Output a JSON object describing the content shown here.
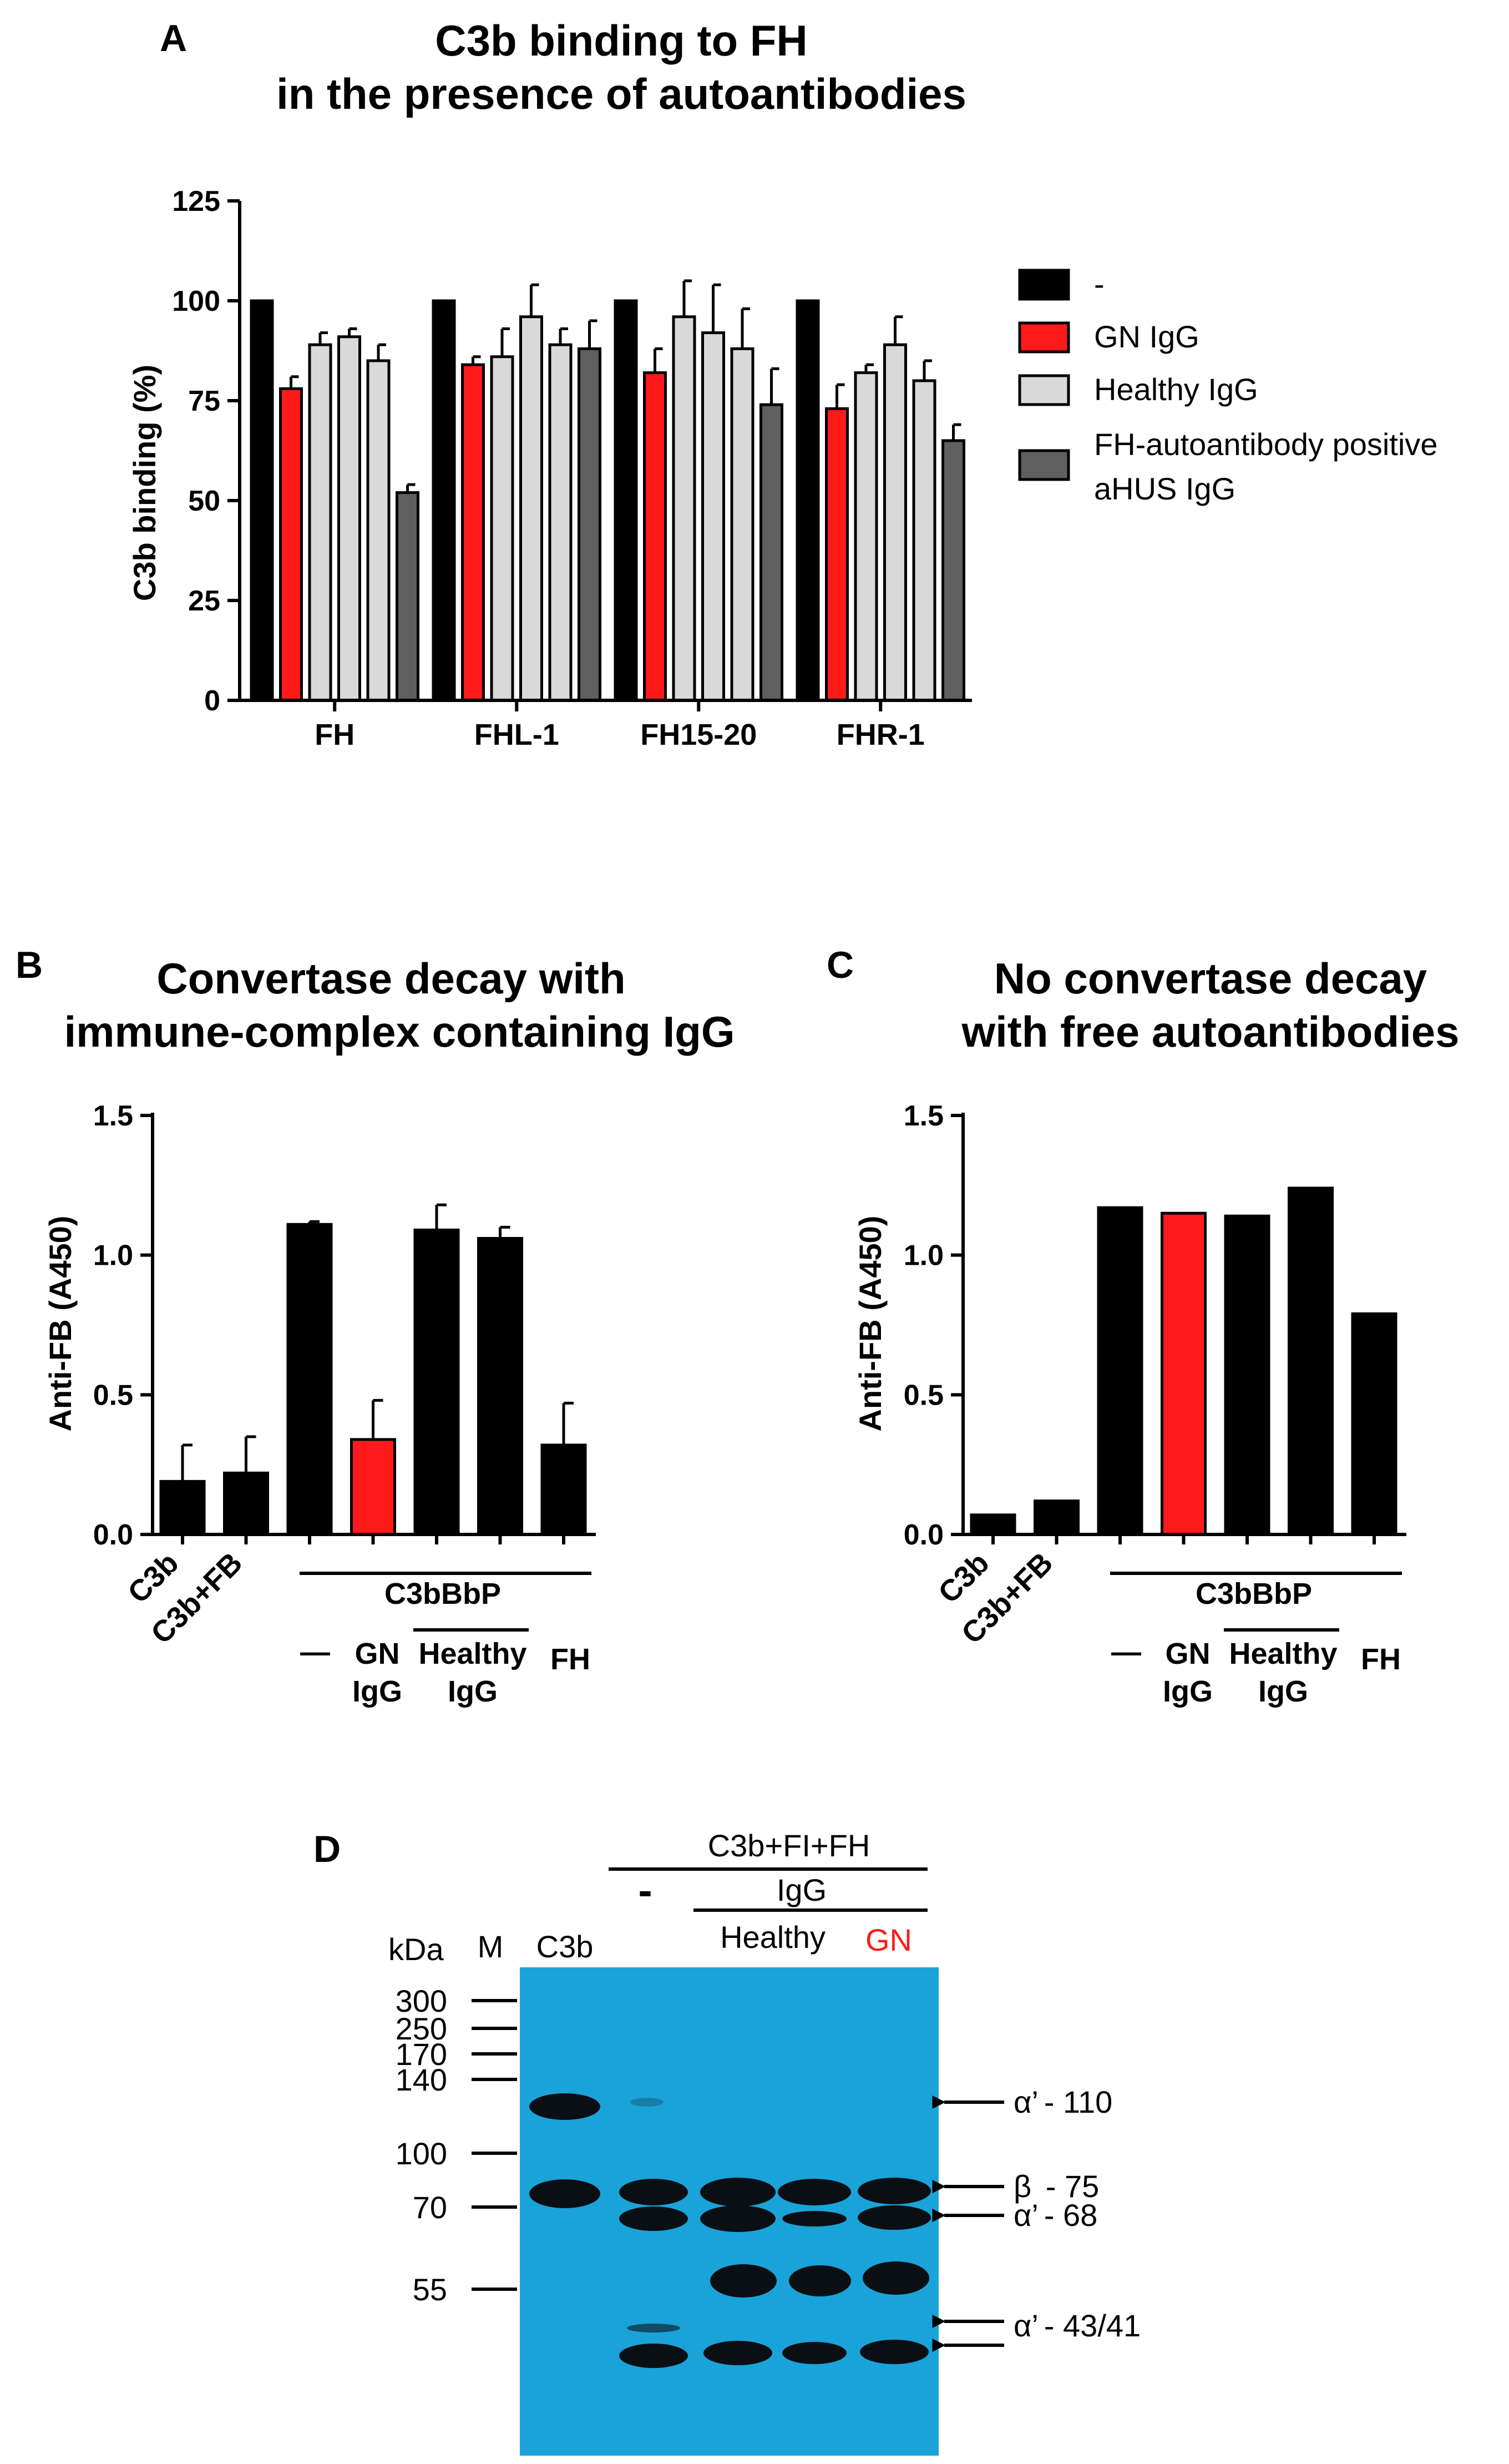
{
  "colors": {
    "black": "#000000",
    "red": "#ff1a1a",
    "light_gray": "#d9d9d9",
    "dark_gray": "#5f5f5f",
    "blot_bg": "#1aa3d9",
    "band": "#0a0f14"
  },
  "chart_data": [
    {
      "id": "A",
      "type": "bar",
      "panel_letter": "A",
      "title_lines": [
        "C3b binding to FH",
        "in the presence of autoantibodies"
      ],
      "ylabel": "C3b binding (%)",
      "ylim": [
        0,
        125
      ],
      "yticks": [
        "0",
        "25",
        "50",
        "75",
        "100",
        "125"
      ],
      "categories": [
        "FH",
        "FHL-1",
        "FH15-20",
        "FHR-1"
      ],
      "series": [
        {
          "name": "-",
          "color": "#000000",
          "values": [
            [
              100,
              0
            ],
            [
              100,
              0
            ],
            [
              100,
              0
            ],
            [
              100,
              0
            ]
          ]
        },
        {
          "name": "GN IgG",
          "color": "#ff1a1a",
          "values": [
            [
              78,
              3
            ],
            [
              84,
              2
            ],
            [
              82,
              6
            ],
            [
              73,
              6
            ]
          ]
        },
        {
          "name": "Healthy IgG",
          "color": "#d9d9d9",
          "values": [
            [
              89,
              3
            ],
            [
              86,
              7
            ],
            [
              96,
              9
            ],
            [
              82,
              2
            ]
          ]
        },
        {
          "name": "Healthy IgG",
          "color": "#d9d9d9",
          "values": [
            [
              91,
              2
            ],
            [
              96,
              8
            ],
            [
              92,
              12
            ],
            [
              89,
              7
            ]
          ]
        },
        {
          "name": "Healthy IgG",
          "color": "#d9d9d9",
          "values": [
            [
              85,
              4
            ],
            [
              89,
              4
            ],
            [
              88,
              10
            ],
            [
              80,
              5
            ]
          ]
        },
        {
          "name": "FH-autoantibody positive aHUS IgG",
          "color": "#5f5f5f",
          "values": [
            [
              52,
              2
            ],
            [
              88,
              7
            ],
            [
              74,
              9
            ],
            [
              65,
              4
            ]
          ]
        }
      ],
      "legend": [
        {
          "label": "-",
          "color": "#000000"
        },
        {
          "label": "GN IgG",
          "color": "#ff1a1a"
        },
        {
          "label": "Healthy IgG",
          "color": "#d9d9d9"
        },
        {
          "label_lines": [
            "FH-autoantibody positive",
            "aHUS IgG"
          ],
          "color": "#5f5f5f"
        }
      ]
    },
    {
      "id": "B",
      "type": "bar",
      "panel_letter": "B",
      "title_lines": [
        "Convertase decay with",
        "immune-complex containing IgG"
      ],
      "ylabel": "Anti-FB (A450)",
      "ylim": [
        0,
        1.5
      ],
      "yticks": [
        "0.0",
        "0.5",
        "1.0",
        "1.5"
      ],
      "categories": [
        "C3b",
        "C3b+FB",
        "C3bBbP -",
        "C3bBbP GN IgG",
        "C3bBbP Healthy IgG 1",
        "C3bBbP Healthy IgG 2",
        "C3bBbP FH"
      ],
      "values": [
        0.19,
        0.22,
        1.11,
        0.34,
        1.09,
        1.06,
        0.32
      ],
      "errors": [
        0.13,
        0.13,
        0.01,
        0.14,
        0.09,
        0.04,
        0.15
      ],
      "bar_colors": [
        "#000000",
        "#000000",
        "#000000",
        "#ff1a1a",
        "#000000",
        "#000000",
        "#000000"
      ],
      "labels": {
        "c3b": "C3b",
        "c3b_fb": "C3b+FB",
        "group": "C3bBbP",
        "dash": "—",
        "gn_lines": [
          "GN",
          "IgG"
        ],
        "healthy_lines": [
          "Healthy",
          "IgG"
        ],
        "fh": "FH"
      }
    },
    {
      "id": "C",
      "type": "bar",
      "panel_letter": "C",
      "title_lines": [
        "No convertase decay",
        "with free autoantibodies"
      ],
      "ylabel": "Anti-FB (A450)",
      "ylim": [
        0,
        1.5
      ],
      "yticks": [
        "0.0",
        "0.5",
        "1.0",
        "1.5"
      ],
      "categories": [
        "C3b",
        "C3b+FB",
        "C3bBbP -",
        "C3bBbP GN IgG",
        "C3bBbP Healthy IgG 1",
        "C3bBbP Healthy IgG 2",
        "C3bBbP FH"
      ],
      "values": [
        0.07,
        0.12,
        1.17,
        1.15,
        1.14,
        1.24,
        0.79
      ],
      "bar_colors": [
        "#000000",
        "#000000",
        "#000000",
        "#ff1a1a",
        "#000000",
        "#000000",
        "#000000"
      ],
      "labels": {
        "c3b": "C3b",
        "c3b_fb": "C3b+FB",
        "group": "C3bBbP",
        "dash": "—",
        "gn_lines": [
          "GN",
          "IgG"
        ],
        "healthy_lines": [
          "Healthy",
          "IgG"
        ],
        "fh": "FH"
      }
    }
  ],
  "blot": {
    "panel_letter": "D",
    "header": "C3b+FI+FH",
    "minus": "-",
    "igg": "IgG",
    "healthy": "Healthy",
    "gn": "GN",
    "kda": "kDa",
    "marker_col": "M",
    "c3b_col": "C3b",
    "markers": [
      "300",
      "250",
      "170",
      "140",
      "100",
      "70",
      "55"
    ],
    "annotations": [
      {
        "greek": "α’",
        "value": "- 110"
      },
      {
        "greek": "β",
        "value": " - 75"
      },
      {
        "greek": "α’",
        "value": "- 68"
      },
      {
        "greek": "α’",
        "value": "- 43/41"
      }
    ]
  }
}
